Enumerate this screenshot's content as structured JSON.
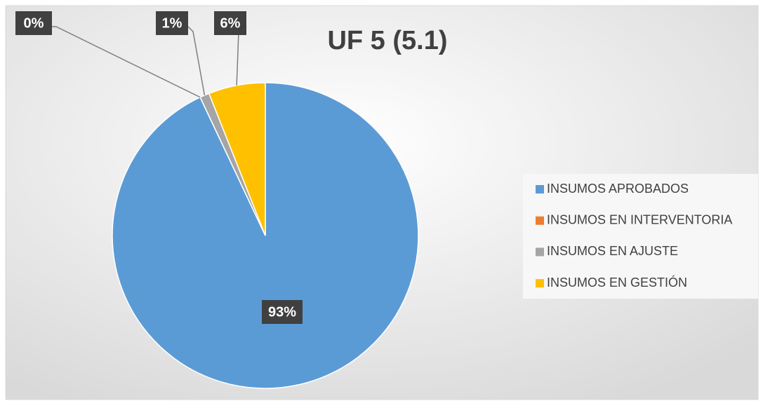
{
  "chart_data": {
    "type": "pie",
    "title": "UF 5 (5.1)",
    "categories": [
      "INSUMOS APROBADOS",
      "INSUMOS EN INTERVENTORIA",
      "INSUMOS EN AJUSTE",
      "INSUMOS EN GESTIÓN"
    ],
    "values": [
      93,
      0,
      1,
      6
    ],
    "value_labels": [
      "93%",
      "0%",
      "1%",
      "6%"
    ],
    "colors": [
      "#5b9bd5",
      "#ed7d31",
      "#a5a5a5",
      "#ffc000"
    ],
    "legend": "right"
  }
}
